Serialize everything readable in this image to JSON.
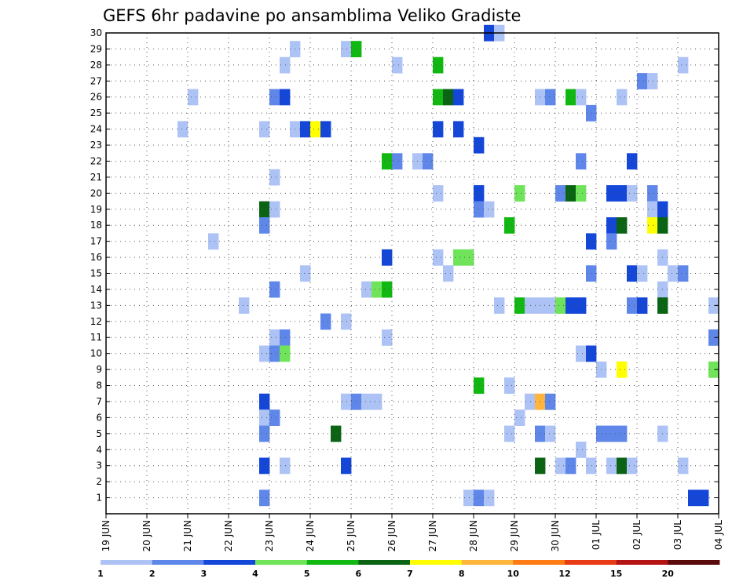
{
  "chart_data": {
    "type": "heatmap",
    "title": "GEFS 6hr padavine po ansamblima Veliko Gradiste",
    "xlabel": "",
    "ylabel": "",
    "x_tick_labels": [
      "19 JUN",
      "20 JUN",
      "21 JUN",
      "22 JUN",
      "23 JUN",
      "24 JUN",
      "25 JUN",
      "26 JUN",
      "27 JUN",
      "28 JUN",
      "29 JUN",
      "30 JUN",
      "01 JUL",
      "02 JUL",
      "03 JUL",
      "04 JUL"
    ],
    "y_tick_labels": [
      "1",
      "2",
      "3",
      "4",
      "5",
      "6",
      "7",
      "8",
      "9",
      "10",
      "11",
      "12",
      "13",
      "14",
      "15",
      "16",
      "17",
      "18",
      "19",
      "20",
      "21",
      "22",
      "23",
      "24",
      "25",
      "26",
      "27",
      "28",
      "29",
      "30"
    ],
    "x_range": [
      0,
      15
    ],
    "y_range": [
      0,
      30
    ],
    "grid": true,
    "legend": {
      "placement": "bottom",
      "labels": [
        "1",
        "2",
        "3",
        "4",
        "5",
        "6",
        "7",
        "8",
        "10",
        "12",
        "15",
        "20"
      ],
      "colors": [
        "#aec3f5",
        "#5f87ea",
        "#1446d8",
        "#6fe45a",
        "#12b812",
        "#0a6414",
        "#ffff00",
        "#ffb43c",
        "#ff7b14",
        "#e83a14",
        "#b41414",
        "#5a0a0a"
      ]
    },
    "cell_width_days": 0.25,
    "cells": [
      {
        "x": 9.25,
        "y": 30,
        "v": 3
      },
      {
        "x": 9.5,
        "y": 30,
        "v": 1
      },
      {
        "x": 4.5,
        "y": 29,
        "v": 1
      },
      {
        "x": 5.75,
        "y": 29,
        "v": 1
      },
      {
        "x": 6.0,
        "y": 29,
        "v": 5
      },
      {
        "x": 4.25,
        "y": 28,
        "v": 1
      },
      {
        "x": 7.0,
        "y": 28,
        "v": 1
      },
      {
        "x": 8.0,
        "y": 28,
        "v": 5
      },
      {
        "x": 14.0,
        "y": 28,
        "v": 1
      },
      {
        "x": 13.0,
        "y": 27,
        "v": 2
      },
      {
        "x": 13.25,
        "y": 27,
        "v": 1
      },
      {
        "x": 2.0,
        "y": 26,
        "v": 1
      },
      {
        "x": 4.0,
        "y": 26,
        "v": 2
      },
      {
        "x": 4.25,
        "y": 26,
        "v": 3
      },
      {
        "x": 8.0,
        "y": 26,
        "v": 5
      },
      {
        "x": 8.25,
        "y": 26,
        "v": 6
      },
      {
        "x": 8.5,
        "y": 26,
        "v": 3
      },
      {
        "x": 10.5,
        "y": 26,
        "v": 1
      },
      {
        "x": 10.75,
        "y": 26,
        "v": 2
      },
      {
        "x": 11.25,
        "y": 26,
        "v": 5
      },
      {
        "x": 11.5,
        "y": 26,
        "v": 1
      },
      {
        "x": 12.5,
        "y": 26,
        "v": 1
      },
      {
        "x": 11.75,
        "y": 25,
        "v": 2
      },
      {
        "x": 1.75,
        "y": 24,
        "v": 1
      },
      {
        "x": 3.75,
        "y": 24,
        "v": 1
      },
      {
        "x": 4.5,
        "y": 24,
        "v": 1
      },
      {
        "x": 4.75,
        "y": 24,
        "v": 3
      },
      {
        "x": 5.0,
        "y": 24,
        "v": 7
      },
      {
        "x": 5.25,
        "y": 24,
        "v": 3
      },
      {
        "x": 8.0,
        "y": 24,
        "v": 3
      },
      {
        "x": 8.5,
        "y": 24,
        "v": 3
      },
      {
        "x": 9.0,
        "y": 23,
        "v": 3
      },
      {
        "x": 6.75,
        "y": 22,
        "v": 5
      },
      {
        "x": 7.0,
        "y": 22,
        "v": 2
      },
      {
        "x": 7.5,
        "y": 22,
        "v": 1
      },
      {
        "x": 7.75,
        "y": 22,
        "v": 2
      },
      {
        "x": 11.5,
        "y": 22,
        "v": 2
      },
      {
        "x": 12.75,
        "y": 22,
        "v": 3
      },
      {
        "x": 4.0,
        "y": 21,
        "v": 1
      },
      {
        "x": 8.0,
        "y": 20,
        "v": 1
      },
      {
        "x": 9.0,
        "y": 20,
        "v": 3
      },
      {
        "x": 10.0,
        "y": 20,
        "v": 4
      },
      {
        "x": 11.0,
        "y": 20,
        "v": 2
      },
      {
        "x": 11.25,
        "y": 20,
        "v": 6
      },
      {
        "x": 11.5,
        "y": 20,
        "v": 4
      },
      {
        "x": 12.25,
        "y": 20,
        "v": 3
      },
      {
        "x": 12.5,
        "y": 20,
        "v": 3
      },
      {
        "x": 12.75,
        "y": 20,
        "v": 1
      },
      {
        "x": 13.25,
        "y": 20,
        "v": 2
      },
      {
        "x": 3.75,
        "y": 19,
        "v": 6
      },
      {
        "x": 4.0,
        "y": 19,
        "v": 1
      },
      {
        "x": 9.0,
        "y": 19,
        "v": 2
      },
      {
        "x": 9.25,
        "y": 19,
        "v": 1
      },
      {
        "x": 13.25,
        "y": 19,
        "v": 1
      },
      {
        "x": 13.5,
        "y": 19,
        "v": 3
      },
      {
        "x": 3.75,
        "y": 18,
        "v": 2
      },
      {
        "x": 9.75,
        "y": 18,
        "v": 5
      },
      {
        "x": 12.25,
        "y": 18,
        "v": 3
      },
      {
        "x": 12.5,
        "y": 18,
        "v": 6
      },
      {
        "x": 13.25,
        "y": 18,
        "v": 7
      },
      {
        "x": 13.5,
        "y": 18,
        "v": 6
      },
      {
        "x": 2.5,
        "y": 17,
        "v": 1
      },
      {
        "x": 11.75,
        "y": 17,
        "v": 3
      },
      {
        "x": 12.25,
        "y": 17,
        "v": 2
      },
      {
        "x": 6.75,
        "y": 16,
        "v": 3
      },
      {
        "x": 8.0,
        "y": 16,
        "v": 1
      },
      {
        "x": 8.5,
        "y": 16,
        "v": 4
      },
      {
        "x": 8.75,
        "y": 16,
        "v": 4
      },
      {
        "x": 13.5,
        "y": 16,
        "v": 1
      },
      {
        "x": 4.75,
        "y": 15,
        "v": 1
      },
      {
        "x": 8.25,
        "y": 15,
        "v": 1
      },
      {
        "x": 11.75,
        "y": 15,
        "v": 2
      },
      {
        "x": 12.75,
        "y": 15,
        "v": 3
      },
      {
        "x": 13.0,
        "y": 15,
        "v": 1
      },
      {
        "x": 13.75,
        "y": 15,
        "v": 1
      },
      {
        "x": 14.0,
        "y": 15,
        "v": 2
      },
      {
        "x": 4.0,
        "y": 14,
        "v": 2
      },
      {
        "x": 6.25,
        "y": 14,
        "v": 1
      },
      {
        "x": 6.5,
        "y": 14,
        "v": 4
      },
      {
        "x": 6.75,
        "y": 14,
        "v": 5
      },
      {
        "x": 13.5,
        "y": 14,
        "v": 1
      },
      {
        "x": 3.25,
        "y": 13,
        "v": 1
      },
      {
        "x": 9.5,
        "y": 13,
        "v": 1
      },
      {
        "x": 10.0,
        "y": 13,
        "v": 5
      },
      {
        "x": 10.25,
        "y": 13,
        "v": 1
      },
      {
        "x": 10.5,
        "y": 13,
        "v": 1
      },
      {
        "x": 10.75,
        "y": 13,
        "v": 1
      },
      {
        "x": 11.0,
        "y": 13,
        "v": 4
      },
      {
        "x": 11.25,
        "y": 13,
        "v": 3
      },
      {
        "x": 11.5,
        "y": 13,
        "v": 3
      },
      {
        "x": 12.75,
        "y": 13,
        "v": 2
      },
      {
        "x": 13.0,
        "y": 13,
        "v": 3
      },
      {
        "x": 13.5,
        "y": 13,
        "v": 6
      },
      {
        "x": 14.75,
        "y": 13,
        "v": 1
      },
      {
        "x": 5.25,
        "y": 12,
        "v": 2
      },
      {
        "x": 5.75,
        "y": 12,
        "v": 1
      },
      {
        "x": 4.0,
        "y": 11,
        "v": 1
      },
      {
        "x": 4.25,
        "y": 11,
        "v": 2
      },
      {
        "x": 6.75,
        "y": 11,
        "v": 1
      },
      {
        "x": 14.75,
        "y": 11,
        "v": 2
      },
      {
        "x": 3.75,
        "y": 10,
        "v": 1
      },
      {
        "x": 4.0,
        "y": 10,
        "v": 2
      },
      {
        "x": 4.25,
        "y": 10,
        "v": 4
      },
      {
        "x": 11.5,
        "y": 10,
        "v": 1
      },
      {
        "x": 11.75,
        "y": 10,
        "v": 3
      },
      {
        "x": 12.0,
        "y": 9,
        "v": 1
      },
      {
        "x": 12.5,
        "y": 9,
        "v": 7
      },
      {
        "x": 14.75,
        "y": 9,
        "v": 4
      },
      {
        "x": 9.0,
        "y": 8,
        "v": 5
      },
      {
        "x": 9.75,
        "y": 8,
        "v": 1
      },
      {
        "x": 3.75,
        "y": 7,
        "v": 3
      },
      {
        "x": 5.75,
        "y": 7,
        "v": 1
      },
      {
        "x": 6.0,
        "y": 7,
        "v": 2
      },
      {
        "x": 6.25,
        "y": 7,
        "v": 1
      },
      {
        "x": 6.5,
        "y": 7,
        "v": 1
      },
      {
        "x": 10.25,
        "y": 7,
        "v": 1
      },
      {
        "x": 10.5,
        "y": 7,
        "v": 8
      },
      {
        "x": 10.75,
        "y": 7,
        "v": 2
      },
      {
        "x": 3.75,
        "y": 6,
        "v": 1
      },
      {
        "x": 4.0,
        "y": 6,
        "v": 2
      },
      {
        "x": 10.0,
        "y": 6,
        "v": 1
      },
      {
        "x": 3.75,
        "y": 5,
        "v": 2
      },
      {
        "x": 5.5,
        "y": 5,
        "v": 6
      },
      {
        "x": 9.75,
        "y": 5,
        "v": 1
      },
      {
        "x": 10.5,
        "y": 5,
        "v": 2
      },
      {
        "x": 10.75,
        "y": 5,
        "v": 1
      },
      {
        "x": 12.0,
        "y": 5,
        "v": 2
      },
      {
        "x": 12.25,
        "y": 5,
        "v": 2
      },
      {
        "x": 12.5,
        "y": 5,
        "v": 2
      },
      {
        "x": 13.5,
        "y": 5,
        "v": 1
      },
      {
        "x": 11.5,
        "y": 4,
        "v": 1
      },
      {
        "x": 3.75,
        "y": 3,
        "v": 3
      },
      {
        "x": 4.25,
        "y": 3,
        "v": 1
      },
      {
        "x": 5.75,
        "y": 3,
        "v": 3
      },
      {
        "x": 10.5,
        "y": 3,
        "v": 6
      },
      {
        "x": 11.0,
        "y": 3,
        "v": 1
      },
      {
        "x": 11.25,
        "y": 3,
        "v": 2
      },
      {
        "x": 11.75,
        "y": 3,
        "v": 1
      },
      {
        "x": 12.25,
        "y": 3,
        "v": 1
      },
      {
        "x": 12.5,
        "y": 3,
        "v": 6
      },
      {
        "x": 12.75,
        "y": 3,
        "v": 1
      },
      {
        "x": 14.0,
        "y": 3,
        "v": 1
      },
      {
        "x": 3.75,
        "y": 1,
        "v": 2
      },
      {
        "x": 8.75,
        "y": 1,
        "v": 1
      },
      {
        "x": 9.0,
        "y": 1,
        "v": 2
      },
      {
        "x": 9.25,
        "y": 1,
        "v": 1
      },
      {
        "x": 14.25,
        "y": 1,
        "v": 3
      },
      {
        "x": 14.5,
        "y": 1,
        "v": 3
      }
    ]
  }
}
